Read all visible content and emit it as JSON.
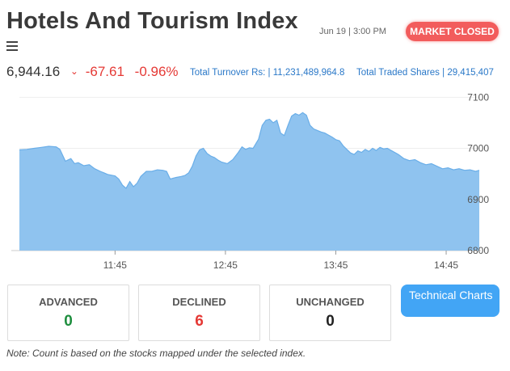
{
  "header": {
    "title": "Hotels And Tourism Index",
    "datetime": "Jun 19 | 3:00 PM",
    "market_status": "MARKET CLOSED"
  },
  "summary": {
    "price": "6,944.16",
    "change": "-67.61",
    "change_pct": "-0.96%",
    "turnover_label": "Total Turnover Rs: |",
    "turnover_value": "11,231,489,964.8",
    "shares_label": "Total Traded Shares |",
    "shares_value": "29,415,407"
  },
  "colors": {
    "negative": "#e53935",
    "accent": "#2a78c8",
    "area_fill": "#8fc3ef",
    "area_line": "#6aaee8",
    "badge": "#f25c5c"
  },
  "chart_data": {
    "type": "area",
    "x_ticks": [
      "11:45",
      "12:45",
      "13:45",
      "14:45"
    ],
    "y_ticks": [
      6800,
      6900,
      7000,
      7100
    ],
    "ylim": [
      6800,
      7110
    ],
    "xlim": [
      0,
      250
    ],
    "x_tick_positions": [
      52,
      112,
      172,
      232
    ],
    "series": [
      {
        "points": [
          [
            0,
            6997
          ],
          [
            4,
            6998
          ],
          [
            8,
            7000
          ],
          [
            12,
            7002
          ],
          [
            16,
            7004
          ],
          [
            20,
            7003
          ],
          [
            22,
            6998
          ],
          [
            25,
            6975
          ],
          [
            28,
            6980
          ],
          [
            30,
            6970
          ],
          [
            32,
            6972
          ],
          [
            35,
            6966
          ],
          [
            38,
            6968
          ],
          [
            41,
            6960
          ],
          [
            44,
            6955
          ],
          [
            48,
            6949
          ],
          [
            52,
            6946
          ],
          [
            54,
            6940
          ],
          [
            56,
            6928
          ],
          [
            58,
            6922
          ],
          [
            60,
            6935
          ],
          [
            62,
            6925
          ],
          [
            64,
            6932
          ],
          [
            66,
            6945
          ],
          [
            69,
            6955
          ],
          [
            72,
            6955
          ],
          [
            75,
            6958
          ],
          [
            78,
            6957
          ],
          [
            80,
            6955
          ],
          [
            82,
            6940
          ],
          [
            85,
            6943
          ],
          [
            88,
            6945
          ],
          [
            90,
            6947
          ],
          [
            92,
            6952
          ],
          [
            94,
            6965
          ],
          [
            96,
            6985
          ],
          [
            98,
            6997
          ],
          [
            100,
            7000
          ],
          [
            102,
            6990
          ],
          [
            104,
            6985
          ],
          [
            106,
            6982
          ],
          [
            108,
            6977
          ],
          [
            110,
            6973
          ],
          [
            113,
            6970
          ],
          [
            116,
            6978
          ],
          [
            119,
            6992
          ],
          [
            121,
            7003
          ],
          [
            123,
            6998
          ],
          [
            125,
            7001
          ],
          [
            127,
            7000
          ],
          [
            130,
            7018
          ],
          [
            132,
            7045
          ],
          [
            134,
            7055
          ],
          [
            136,
            7057
          ],
          [
            138,
            7050
          ],
          [
            140,
            7055
          ],
          [
            142,
            7030
          ],
          [
            144,
            7025
          ],
          [
            146,
            7045
          ],
          [
            148,
            7063
          ],
          [
            150,
            7068
          ],
          [
            152,
            7065
          ],
          [
            154,
            7070
          ],
          [
            156,
            7065
          ],
          [
            158,
            7045
          ],
          [
            160,
            7038
          ],
          [
            162,
            7035
          ],
          [
            164,
            7032
          ],
          [
            166,
            7030
          ],
          [
            168,
            7026
          ],
          [
            170,
            7022
          ],
          [
            172,
            7017
          ],
          [
            174,
            7015
          ],
          [
            176,
            7005
          ],
          [
            178,
            6998
          ],
          [
            180,
            6991
          ],
          [
            182,
            6988
          ],
          [
            184,
            6995
          ],
          [
            186,
            6992
          ],
          [
            188,
            6998
          ],
          [
            190,
            6994
          ],
          [
            192,
            7000
          ],
          [
            194,
            6996
          ],
          [
            196,
            7002
          ],
          [
            198,
            6999
          ],
          [
            200,
            7000
          ],
          [
            203,
            6994
          ],
          [
            206,
            6988
          ],
          [
            209,
            6980
          ],
          [
            212,
            6976
          ],
          [
            215,
            6978
          ],
          [
            218,
            6972
          ],
          [
            221,
            6968
          ],
          [
            224,
            6970
          ],
          [
            227,
            6965
          ],
          [
            230,
            6960
          ],
          [
            233,
            6962
          ],
          [
            236,
            6958
          ],
          [
            239,
            6960
          ],
          [
            242,
            6957
          ],
          [
            245,
            6958
          ],
          [
            248,
            6955
          ],
          [
            250,
            6957
          ]
        ]
      }
    ]
  },
  "stats": {
    "advanced": {
      "label": "ADVANCED",
      "value": "0",
      "color": "#1e8e3e"
    },
    "declined": {
      "label": "DECLINED",
      "value": "6",
      "color": "#e53935"
    },
    "unchanged": {
      "label": "UNCHANGED",
      "value": "0",
      "color": "#222222"
    }
  },
  "technical_button": "Technical Charts",
  "note": "Note: Count is based on the stocks mapped under the selected index."
}
